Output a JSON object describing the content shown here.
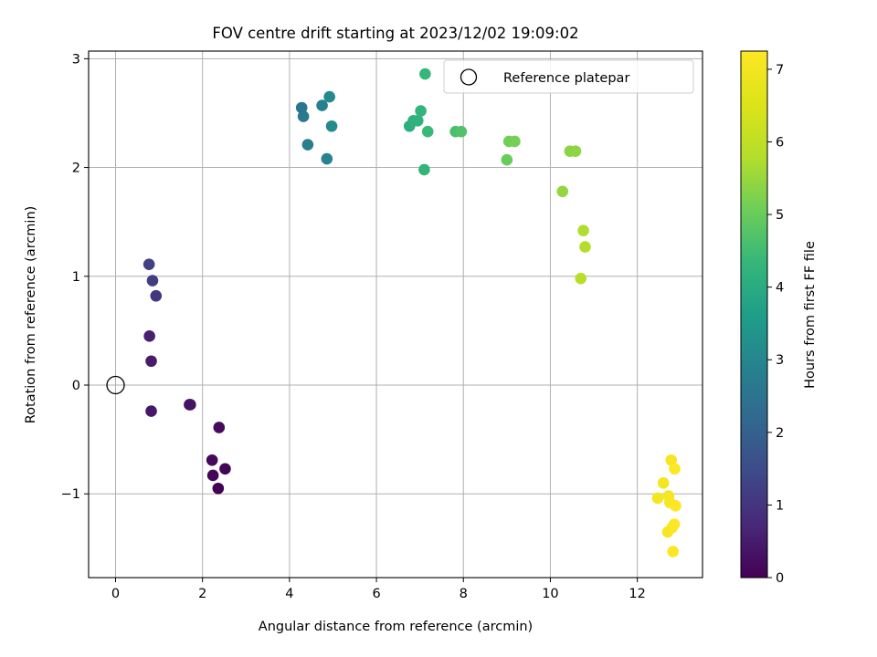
{
  "chart_data": {
    "type": "scatter",
    "title": "FOV centre drift starting at 2023/12/02 19:09:02",
    "xlabel": "Angular distance from reference (arcmin)",
    "ylabel": "Rotation from reference (arcmin)",
    "xlim": [
      -0.62,
      13.5
    ],
    "ylim": [
      -1.77,
      3.07
    ],
    "xticks": [
      0,
      2,
      4,
      6,
      8,
      10,
      12
    ],
    "yticks": [
      -1,
      0,
      1,
      2,
      3
    ],
    "grid": true,
    "legend": {
      "position": "top-right",
      "entries": [
        "Reference platepar"
      ]
    },
    "colorbar": {
      "label": "Hours from first FF file",
      "range": [
        0,
        7.25
      ],
      "ticks": [
        0,
        1,
        2,
        3,
        4,
        5,
        6,
        7
      ],
      "colormap": "viridis"
    },
    "reference": {
      "x": 0,
      "y": 0
    },
    "points": [
      {
        "x": 2.36,
        "y": -0.95,
        "t": 0.0
      },
      {
        "x": 2.52,
        "y": -0.77,
        "t": 0.05
      },
      {
        "x": 2.24,
        "y": -0.83,
        "t": 0.1
      },
      {
        "x": 2.22,
        "y": -0.69,
        "t": 0.15
      },
      {
        "x": 2.38,
        "y": -0.39,
        "t": 0.2
      },
      {
        "x": 1.7,
        "y": -0.18,
        "t": 0.28
      },
      {
        "x": 1.72,
        "y": -0.18,
        "t": 0.33
      },
      {
        "x": 0.82,
        "y": -0.24,
        "t": 0.42
      },
      {
        "x": 0.82,
        "y": 0.22,
        "t": 0.5
      },
      {
        "x": 0.78,
        "y": 0.45,
        "t": 0.58
      },
      {
        "x": 0.93,
        "y": 0.82,
        "t": 1.05
      },
      {
        "x": 0.85,
        "y": 0.96,
        "t": 1.15
      },
      {
        "x": 0.77,
        "y": 1.11,
        "t": 1.25
      },
      {
        "x": 4.28,
        "y": 2.55,
        "t": 2.55
      },
      {
        "x": 4.32,
        "y": 2.47,
        "t": 2.65
      },
      {
        "x": 4.42,
        "y": 2.21,
        "t": 2.75
      },
      {
        "x": 4.75,
        "y": 2.57,
        "t": 2.85
      },
      {
        "x": 4.86,
        "y": 2.08,
        "t": 2.95
      },
      {
        "x": 4.92,
        "y": 2.65,
        "t": 3.05
      },
      {
        "x": 4.97,
        "y": 2.38,
        "t": 3.1
      },
      {
        "x": 6.76,
        "y": 2.38,
        "t": 4.1
      },
      {
        "x": 6.85,
        "y": 2.43,
        "t": 4.15
      },
      {
        "x": 6.95,
        "y": 2.43,
        "t": 4.2
      },
      {
        "x": 7.02,
        "y": 2.52,
        "t": 4.25
      },
      {
        "x": 7.1,
        "y": 1.98,
        "t": 4.3
      },
      {
        "x": 7.12,
        "y": 2.86,
        "t": 4.35
      },
      {
        "x": 7.18,
        "y": 2.33,
        "t": 4.4
      },
      {
        "x": 7.82,
        "y": 2.33,
        "t": 4.6
      },
      {
        "x": 7.95,
        "y": 2.33,
        "t": 4.7
      },
      {
        "x": 9.0,
        "y": 2.07,
        "t": 5.0
      },
      {
        "x": 9.05,
        "y": 2.24,
        "t": 5.1
      },
      {
        "x": 9.18,
        "y": 2.24,
        "t": 5.15
      },
      {
        "x": 10.28,
        "y": 1.78,
        "t": 5.45
      },
      {
        "x": 10.45,
        "y": 2.15,
        "t": 5.35
      },
      {
        "x": 10.58,
        "y": 2.15,
        "t": 5.4
      },
      {
        "x": 10.7,
        "y": 0.98,
        "t": 5.85
      },
      {
        "x": 10.76,
        "y": 1.42,
        "t": 5.75
      },
      {
        "x": 10.8,
        "y": 1.27,
        "t": 5.8
      },
      {
        "x": 12.47,
        "y": -1.04,
        "t": 7.0
      },
      {
        "x": 12.6,
        "y": -0.9,
        "t": 7.05
      },
      {
        "x": 12.7,
        "y": -1.35,
        "t": 7.1
      },
      {
        "x": 12.72,
        "y": -1.02,
        "t": 7.1
      },
      {
        "x": 12.75,
        "y": -1.08,
        "t": 7.12
      },
      {
        "x": 12.78,
        "y": -0.69,
        "t": 7.15
      },
      {
        "x": 12.8,
        "y": -1.31,
        "t": 7.15
      },
      {
        "x": 12.82,
        "y": -1.53,
        "t": 7.2
      },
      {
        "x": 12.85,
        "y": -1.28,
        "t": 7.2
      },
      {
        "x": 12.86,
        "y": -0.77,
        "t": 7.22
      },
      {
        "x": 12.88,
        "y": -1.11,
        "t": 7.25
      }
    ]
  }
}
